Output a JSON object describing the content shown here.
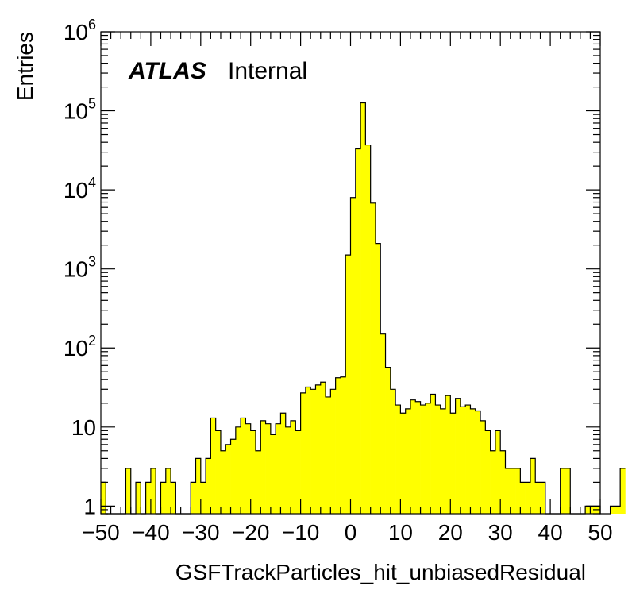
{
  "chart_data": {
    "type": "bar",
    "title": "",
    "xlabel": "GSFTrackParticles_hit_unbiasedResidual",
    "ylabel": "Entries",
    "label_bold": "ATLAS",
    "label_status": "Internal",
    "xlim": [
      -50,
      50
    ],
    "ylim": [
      0.8,
      1000000
    ],
    "y_scale": "log",
    "bin_width": 1,
    "fill_color": "#ffff00",
    "line_color": "#000000",
    "x_ticks": [
      "−50",
      "−40",
      "−30",
      "−20",
      "−10",
      "0",
      "10",
      "20",
      "30",
      "40",
      "50"
    ],
    "x_tick_values": [
      -50,
      -40,
      -30,
      -20,
      -10,
      0,
      10,
      20,
      30,
      40,
      50
    ],
    "y_ticks": [
      {
        "value": 1,
        "base": "1",
        "exp": ""
      },
      {
        "value": 10,
        "base": "10",
        "exp": ""
      },
      {
        "value": 100,
        "base": "10",
        "exp": "2"
      },
      {
        "value": 1000,
        "base": "10",
        "exp": "3"
      },
      {
        "value": 10000,
        "base": "10",
        "exp": "4"
      },
      {
        "value": 100000,
        "base": "10",
        "exp": "5"
      },
      {
        "value": 1000000,
        "base": "10",
        "exp": "6"
      }
    ],
    "bin_edges_start": -50,
    "values": [
      2,
      0,
      0,
      0,
      0,
      3,
      0,
      2,
      0,
      2,
      3,
      0,
      2,
      3,
      2,
      0,
      0,
      0,
      2,
      4,
      2,
      4,
      13,
      9,
      5,
      6,
      7,
      10,
      13,
      11,
      9,
      5,
      12,
      11,
      8,
      11,
      15,
      10,
      12,
      9,
      27,
      32,
      30,
      34,
      37,
      24,
      30,
      42,
      43,
      1500,
      8000,
      33000,
      126000,
      37000,
      6800,
      2100,
      150,
      57,
      30,
      19,
      15,
      17,
      22,
      21,
      19,
      20,
      26,
      19,
      17,
      25,
      15,
      23,
      18,
      19,
      17,
      16,
      12,
      9,
      5,
      9,
      5,
      3,
      3,
      3,
      2,
      2,
      4,
      2,
      2,
      0,
      0,
      0,
      3,
      3,
      0,
      0,
      0,
      1,
      1,
      1,
      0,
      0,
      1,
      1,
      3
    ]
  }
}
